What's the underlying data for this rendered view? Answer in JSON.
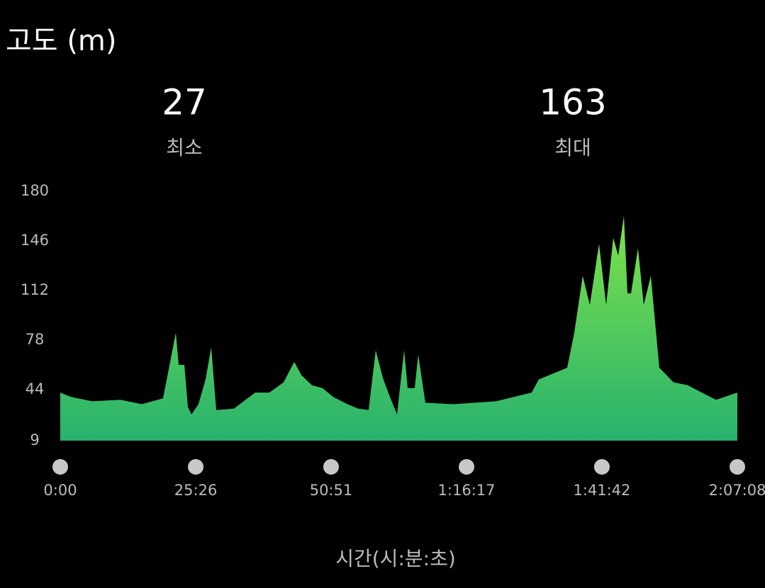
{
  "chart_data": {
    "type": "area",
    "title": "고도 (m)",
    "stats": [
      {
        "value": 27,
        "label": "최소"
      },
      {
        "value": 163,
        "label": "최대"
      }
    ],
    "x_label": "시간(시:분:초)",
    "x": [
      0,
      120,
      359,
      679,
      918,
      1158,
      1238,
      1302,
      1334,
      1398,
      1438,
      1478,
      1557,
      1637,
      1701,
      1757,
      1957,
      2196,
      2356,
      2516,
      2636,
      2716,
      2835,
      2955,
      3075,
      3235,
      3355,
      3474,
      3554,
      3634,
      3714,
      3794,
      3874,
      3914,
      3993,
      4033,
      4113,
      4433,
      4912,
      5311,
      5391,
      5711,
      5791,
      5886,
      5966,
      6070,
      6150,
      6230,
      6286,
      6350,
      6390,
      6430,
      6509,
      6573,
      6653,
      6749,
      6909,
      7068,
      7228,
      7388,
      7628
    ],
    "values": [
      42,
      39,
      36,
      37,
      34,
      38,
      63,
      83,
      61,
      61,
      32,
      27,
      34,
      51,
      73,
      30,
      31,
      42,
      42,
      49,
      63,
      54,
      47,
      45,
      39,
      34,
      31,
      30,
      71,
      52,
      39,
      27,
      71,
      45,
      45,
      68,
      35,
      34,
      36,
      42,
      51,
      59,
      83,
      122,
      102,
      144,
      102,
      148,
      136,
      163,
      110,
      110,
      141,
      102,
      122,
      59,
      49,
      47,
      42,
      37,
      42
    ],
    "color_top": "#7ee24a",
    "color_bottom": "#27b26e",
    "xlim": [
      0,
      7628
    ],
    "xticks": [
      {
        "value": 0,
        "label": "0:00"
      },
      {
        "value": 1526,
        "label": "25:26"
      },
      {
        "value": 3051,
        "label": "50:51"
      },
      {
        "value": 4577,
        "label": "1:16:17"
      },
      {
        "value": 6102,
        "label": "1:41:42"
      },
      {
        "value": 7628,
        "label": "2:07:08"
      }
    ],
    "ylim": [
      9,
      180
    ],
    "yticks": [
      9,
      44,
      78,
      112,
      146,
      180
    ],
    "grid": false
  }
}
